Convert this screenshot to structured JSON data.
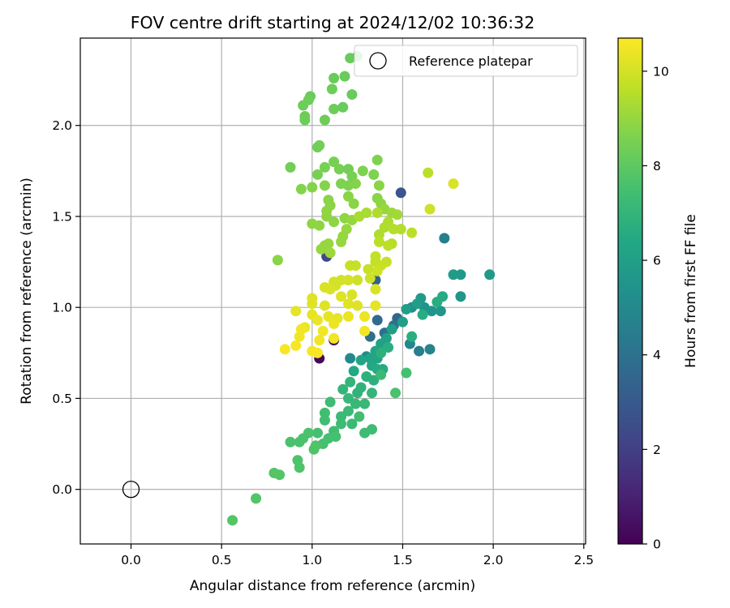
{
  "chart_data": {
    "type": "scatter",
    "title": "FOV centre drift starting at 2024/12/02 10:36:32",
    "xlabel": "Angular distance from reference (arcmin)",
    "ylabel": "Rotation from reference (arcmin)",
    "xlim": [
      -0.28,
      2.51
    ],
    "ylim": [
      -0.3,
      2.48
    ],
    "xticks": [
      0.0,
      0.5,
      1.0,
      1.5,
      2.0,
      2.5
    ],
    "yticks": [
      0.0,
      0.5,
      1.0,
      1.5,
      2.0
    ],
    "xtick_labels": [
      "0.0",
      "0.5",
      "1.0",
      "1.5",
      "2.0",
      "2.5"
    ],
    "ytick_labels": [
      "0.0",
      "0.5",
      "1.0",
      "1.5",
      "2.0"
    ],
    "grid": true,
    "legend": {
      "placement": "top-right",
      "entries": [
        "Reference platepar"
      ]
    },
    "reference_point": {
      "name": "Reference platepar",
      "x": 0.0,
      "y": 0.0
    },
    "colorbar": {
      "label": "Hours from first FF file",
      "colormap": "viridis",
      "range": [
        0,
        10.7
      ],
      "ticks": [
        0,
        2,
        4,
        6,
        8,
        10
      ],
      "tick_labels": [
        "0",
        "2",
        "4",
        "6",
        "8",
        "10"
      ]
    },
    "points": [
      {
        "x": 1.04,
        "y": 0.72,
        "c": 0.2
      },
      {
        "x": 1.12,
        "y": 0.82,
        "c": 0.4
      },
      {
        "x": 1.08,
        "y": 1.28,
        "c": 2.2
      },
      {
        "x": 1.49,
        "y": 1.63,
        "c": 2.8
      },
      {
        "x": 1.35,
        "y": 1.15,
        "c": 3.2
      },
      {
        "x": 1.47,
        "y": 0.94,
        "c": 3.5
      },
      {
        "x": 1.36,
        "y": 0.93,
        "c": 3.7
      },
      {
        "x": 1.32,
        "y": 0.84,
        "c": 3.9
      },
      {
        "x": 1.4,
        "y": 0.86,
        "c": 4.0
      },
      {
        "x": 1.45,
        "y": 0.9,
        "c": 4.1
      },
      {
        "x": 1.73,
        "y": 1.38,
        "c": 4.6
      },
      {
        "x": 1.59,
        "y": 0.76,
        "c": 4.5
      },
      {
        "x": 1.65,
        "y": 0.77,
        "c": 4.8
      },
      {
        "x": 1.54,
        "y": 0.8,
        "c": 4.9
      },
      {
        "x": 1.21,
        "y": 0.72,
        "c": 5.0
      },
      {
        "x": 1.3,
        "y": 0.73,
        "c": 5.1
      },
      {
        "x": 1.55,
        "y": 1.0,
        "c": 5.3
      },
      {
        "x": 1.62,
        "y": 1.0,
        "c": 5.4
      },
      {
        "x": 1.66,
        "y": 0.98,
        "c": 5.5
      },
      {
        "x": 1.71,
        "y": 0.98,
        "c": 5.6
      },
      {
        "x": 1.82,
        "y": 1.06,
        "c": 5.6
      },
      {
        "x": 1.98,
        "y": 1.18,
        "c": 5.7
      },
      {
        "x": 1.82,
        "y": 1.18,
        "c": 5.7
      },
      {
        "x": 1.78,
        "y": 1.18,
        "c": 5.8
      },
      {
        "x": 1.6,
        "y": 1.05,
        "c": 5.8
      },
      {
        "x": 1.58,
        "y": 1.02,
        "c": 5.9
      },
      {
        "x": 1.52,
        "y": 0.99,
        "c": 5.9
      },
      {
        "x": 1.5,
        "y": 0.92,
        "c": 6.0
      },
      {
        "x": 1.44,
        "y": 0.88,
        "c": 6.0
      },
      {
        "x": 1.41,
        "y": 0.83,
        "c": 6.1
      },
      {
        "x": 1.38,
        "y": 0.8,
        "c": 6.1
      },
      {
        "x": 1.35,
        "y": 0.76,
        "c": 6.2
      },
      {
        "x": 1.32,
        "y": 0.72,
        "c": 6.2
      },
      {
        "x": 1.36,
        "y": 0.72,
        "c": 6.3
      },
      {
        "x": 1.27,
        "y": 0.71,
        "c": 6.3
      },
      {
        "x": 1.23,
        "y": 0.65,
        "c": 6.4
      },
      {
        "x": 1.33,
        "y": 0.68,
        "c": 6.4
      },
      {
        "x": 1.36,
        "y": 0.66,
        "c": 6.5
      },
      {
        "x": 1.39,
        "y": 0.66,
        "c": 6.5
      },
      {
        "x": 1.72,
        "y": 1.06,
        "c": 6.5
      },
      {
        "x": 1.69,
        "y": 1.03,
        "c": 6.6
      },
      {
        "x": 1.61,
        "y": 0.96,
        "c": 6.6
      },
      {
        "x": 1.55,
        "y": 0.84,
        "c": 6.7
      },
      {
        "x": 1.42,
        "y": 0.78,
        "c": 6.7
      },
      {
        "x": 1.38,
        "y": 0.75,
        "c": 6.8
      },
      {
        "x": 1.3,
        "y": 0.62,
        "c": 6.8
      },
      {
        "x": 1.34,
        "y": 0.6,
        "c": 6.8
      },
      {
        "x": 1.27,
        "y": 0.56,
        "c": 6.9
      },
      {
        "x": 1.25,
        "y": 0.53,
        "c": 6.9
      },
      {
        "x": 1.33,
        "y": 0.53,
        "c": 7.0
      },
      {
        "x": 1.21,
        "y": 0.59,
        "c": 7.0
      },
      {
        "x": 1.17,
        "y": 0.55,
        "c": 7.0
      },
      {
        "x": 1.2,
        "y": 0.5,
        "c": 7.1
      },
      {
        "x": 1.24,
        "y": 0.47,
        "c": 7.1
      },
      {
        "x": 1.29,
        "y": 0.47,
        "c": 7.1
      },
      {
        "x": 1.2,
        "y": 0.43,
        "c": 7.2
      },
      {
        "x": 1.16,
        "y": 0.4,
        "c": 7.2
      },
      {
        "x": 1.22,
        "y": 0.36,
        "c": 7.2
      },
      {
        "x": 1.16,
        "y": 0.36,
        "c": 7.3
      },
      {
        "x": 1.29,
        "y": 0.31,
        "c": 7.3
      },
      {
        "x": 1.33,
        "y": 0.33,
        "c": 7.3
      },
      {
        "x": 1.1,
        "y": 0.48,
        "c": 7.3
      },
      {
        "x": 1.07,
        "y": 0.42,
        "c": 7.4
      },
      {
        "x": 1.07,
        "y": 0.38,
        "c": 7.4
      },
      {
        "x": 1.12,
        "y": 0.32,
        "c": 7.4
      },
      {
        "x": 1.13,
        "y": 0.29,
        "c": 7.5
      },
      {
        "x": 1.09,
        "y": 0.28,
        "c": 7.5
      },
      {
        "x": 1.06,
        "y": 0.25,
        "c": 7.5
      },
      {
        "x": 1.03,
        "y": 0.31,
        "c": 7.5
      },
      {
        "x": 0.98,
        "y": 0.31,
        "c": 7.6
      },
      {
        "x": 0.95,
        "y": 0.28,
        "c": 7.6
      },
      {
        "x": 0.93,
        "y": 0.26,
        "c": 7.6
      },
      {
        "x": 0.88,
        "y": 0.26,
        "c": 7.6
      },
      {
        "x": 1.01,
        "y": 0.22,
        "c": 7.7
      },
      {
        "x": 1.02,
        "y": 0.24,
        "c": 7.7
      },
      {
        "x": 0.92,
        "y": 0.16,
        "c": 7.7
      },
      {
        "x": 0.93,
        "y": 0.12,
        "c": 7.7
      },
      {
        "x": 0.79,
        "y": 0.09,
        "c": 7.8
      },
      {
        "x": 0.82,
        "y": 0.08,
        "c": 7.8
      },
      {
        "x": 0.69,
        "y": -0.05,
        "c": 7.8
      },
      {
        "x": 0.56,
        "y": -0.17,
        "c": 7.8
      },
      {
        "x": 1.46,
        "y": 0.53,
        "c": 7.6
      },
      {
        "x": 1.52,
        "y": 0.64,
        "c": 7.5
      },
      {
        "x": 1.38,
        "y": 0.63,
        "c": 7.2
      },
      {
        "x": 1.26,
        "y": 0.4,
        "c": 7.4
      },
      {
        "x": 1.21,
        "y": 2.37,
        "c": 8.2
      },
      {
        "x": 1.25,
        "y": 2.38,
        "c": 8.1
      },
      {
        "x": 1.12,
        "y": 2.26,
        "c": 8.2
      },
      {
        "x": 1.18,
        "y": 2.27,
        "c": 8.2
      },
      {
        "x": 1.11,
        "y": 2.2,
        "c": 8.3
      },
      {
        "x": 1.22,
        "y": 2.17,
        "c": 8.2
      },
      {
        "x": 0.99,
        "y": 2.16,
        "c": 8.2
      },
      {
        "x": 0.98,
        "y": 2.14,
        "c": 8.3
      },
      {
        "x": 0.95,
        "y": 2.11,
        "c": 8.3
      },
      {
        "x": 1.12,
        "y": 2.09,
        "c": 8.3
      },
      {
        "x": 1.17,
        "y": 2.1,
        "c": 8.2
      },
      {
        "x": 0.96,
        "y": 2.05,
        "c": 8.3
      },
      {
        "x": 0.96,
        "y": 2.03,
        "c": 8.3
      },
      {
        "x": 1.07,
        "y": 2.03,
        "c": 8.3
      },
      {
        "x": 1.03,
        "y": 1.88,
        "c": 8.4
      },
      {
        "x": 1.04,
        "y": 1.89,
        "c": 8.4
      },
      {
        "x": 0.88,
        "y": 1.77,
        "c": 8.4
      },
      {
        "x": 1.12,
        "y": 1.8,
        "c": 8.5
      },
      {
        "x": 1.07,
        "y": 1.77,
        "c": 8.5
      },
      {
        "x": 1.15,
        "y": 1.76,
        "c": 8.5
      },
      {
        "x": 1.2,
        "y": 1.76,
        "c": 8.4
      },
      {
        "x": 1.03,
        "y": 1.73,
        "c": 8.5
      },
      {
        "x": 1.22,
        "y": 1.72,
        "c": 8.5
      },
      {
        "x": 1.28,
        "y": 1.75,
        "c": 8.6
      },
      {
        "x": 1.36,
        "y": 1.81,
        "c": 8.6
      },
      {
        "x": 1.34,
        "y": 1.73,
        "c": 8.6
      },
      {
        "x": 1.16,
        "y": 1.68,
        "c": 8.6
      },
      {
        "x": 1.2,
        "y": 1.67,
        "c": 8.6
      },
      {
        "x": 1.24,
        "y": 1.68,
        "c": 8.7
      },
      {
        "x": 1.07,
        "y": 1.67,
        "c": 8.7
      },
      {
        "x": 1.0,
        "y": 1.66,
        "c": 8.7
      },
      {
        "x": 0.94,
        "y": 1.65,
        "c": 8.7
      },
      {
        "x": 1.37,
        "y": 1.67,
        "c": 8.8
      },
      {
        "x": 1.36,
        "y": 1.6,
        "c": 8.8
      },
      {
        "x": 1.2,
        "y": 1.61,
        "c": 8.8
      },
      {
        "x": 1.09,
        "y": 1.59,
        "c": 8.8
      },
      {
        "x": 1.1,
        "y": 1.56,
        "c": 8.8
      },
      {
        "x": 1.08,
        "y": 1.53,
        "c": 8.9
      },
      {
        "x": 1.23,
        "y": 1.57,
        "c": 8.8
      },
      {
        "x": 1.38,
        "y": 1.57,
        "c": 8.9
      },
      {
        "x": 1.4,
        "y": 1.54,
        "c": 9.0
      },
      {
        "x": 1.44,
        "y": 1.52,
        "c": 9.1
      },
      {
        "x": 1.47,
        "y": 1.51,
        "c": 9.2
      },
      {
        "x": 1.08,
        "y": 1.5,
        "c": 8.9
      },
      {
        "x": 1.12,
        "y": 1.47,
        "c": 8.9
      },
      {
        "x": 1.18,
        "y": 1.49,
        "c": 8.9
      },
      {
        "x": 1.22,
        "y": 1.48,
        "c": 9.0
      },
      {
        "x": 1.0,
        "y": 1.46,
        "c": 8.9
      },
      {
        "x": 1.04,
        "y": 1.45,
        "c": 8.9
      },
      {
        "x": 1.19,
        "y": 1.43,
        "c": 9.0
      },
      {
        "x": 1.17,
        "y": 1.39,
        "c": 9.0
      },
      {
        "x": 1.16,
        "y": 1.36,
        "c": 9.0
      },
      {
        "x": 1.07,
        "y": 1.34,
        "c": 9.0
      },
      {
        "x": 1.09,
        "y": 1.35,
        "c": 9.0
      },
      {
        "x": 1.05,
        "y": 1.32,
        "c": 9.0
      },
      {
        "x": 1.1,
        "y": 1.3,
        "c": 9.1
      },
      {
        "x": 0.81,
        "y": 1.26,
        "c": 8.8
      },
      {
        "x": 1.26,
        "y": 1.5,
        "c": 9.3
      },
      {
        "x": 1.3,
        "y": 1.52,
        "c": 9.3
      },
      {
        "x": 1.36,
        "y": 1.52,
        "c": 9.4
      },
      {
        "x": 1.37,
        "y": 1.4,
        "c": 9.4
      },
      {
        "x": 1.4,
        "y": 1.44,
        "c": 9.4
      },
      {
        "x": 1.42,
        "y": 1.47,
        "c": 9.4
      },
      {
        "x": 1.45,
        "y": 1.43,
        "c": 9.5
      },
      {
        "x": 1.49,
        "y": 1.43,
        "c": 9.5
      },
      {
        "x": 1.44,
        "y": 1.35,
        "c": 9.5
      },
      {
        "x": 1.42,
        "y": 1.34,
        "c": 9.6
      },
      {
        "x": 1.37,
        "y": 1.36,
        "c": 9.6
      },
      {
        "x": 1.55,
        "y": 1.41,
        "c": 9.6
      },
      {
        "x": 1.64,
        "y": 1.74,
        "c": 9.6
      },
      {
        "x": 1.65,
        "y": 1.54,
        "c": 9.9
      },
      {
        "x": 1.78,
        "y": 1.68,
        "c": 10.1
      },
      {
        "x": 1.35,
        "y": 1.28,
        "c": 9.7
      },
      {
        "x": 1.35,
        "y": 1.25,
        "c": 9.7
      },
      {
        "x": 1.41,
        "y": 1.25,
        "c": 9.8
      },
      {
        "x": 1.38,
        "y": 1.23,
        "c": 9.8
      },
      {
        "x": 1.31,
        "y": 1.21,
        "c": 9.8
      },
      {
        "x": 1.24,
        "y": 1.23,
        "c": 9.8
      },
      {
        "x": 1.21,
        "y": 1.23,
        "c": 9.8
      },
      {
        "x": 1.36,
        "y": 1.2,
        "c": 9.9
      },
      {
        "x": 1.32,
        "y": 1.16,
        "c": 9.9
      },
      {
        "x": 1.25,
        "y": 1.15,
        "c": 9.9
      },
      {
        "x": 1.2,
        "y": 1.15,
        "c": 10.0
      },
      {
        "x": 1.16,
        "y": 1.15,
        "c": 10.0
      },
      {
        "x": 1.12,
        "y": 1.14,
        "c": 10.0
      },
      {
        "x": 1.13,
        "y": 1.12,
        "c": 10.0
      },
      {
        "x": 1.07,
        "y": 1.11,
        "c": 10.1
      },
      {
        "x": 1.1,
        "y": 1.1,
        "c": 10.1
      },
      {
        "x": 1.35,
        "y": 1.1,
        "c": 10.1
      },
      {
        "x": 1.22,
        "y": 1.07,
        "c": 10.1
      },
      {
        "x": 1.16,
        "y": 1.06,
        "c": 10.2
      },
      {
        "x": 1.0,
        "y": 1.05,
        "c": 10.2
      },
      {
        "x": 1.0,
        "y": 1.02,
        "c": 10.2
      },
      {
        "x": 1.07,
        "y": 1.01,
        "c": 10.2
      },
      {
        "x": 1.2,
        "y": 1.02,
        "c": 10.2
      },
      {
        "x": 1.25,
        "y": 1.01,
        "c": 10.2
      },
      {
        "x": 1.35,
        "y": 1.01,
        "c": 10.3
      },
      {
        "x": 0.91,
        "y": 0.98,
        "c": 10.3
      },
      {
        "x": 1.0,
        "y": 0.96,
        "c": 10.3
      },
      {
        "x": 1.09,
        "y": 0.95,
        "c": 10.3
      },
      {
        "x": 1.14,
        "y": 0.94,
        "c": 10.3
      },
      {
        "x": 1.2,
        "y": 0.95,
        "c": 10.4
      },
      {
        "x": 1.29,
        "y": 0.95,
        "c": 10.4
      },
      {
        "x": 1.03,
        "y": 0.93,
        "c": 10.4
      },
      {
        "x": 1.12,
        "y": 0.91,
        "c": 10.4
      },
      {
        "x": 0.96,
        "y": 0.89,
        "c": 10.4
      },
      {
        "x": 0.94,
        "y": 0.88,
        "c": 10.5
      },
      {
        "x": 1.06,
        "y": 0.87,
        "c": 10.5
      },
      {
        "x": 1.29,
        "y": 0.87,
        "c": 10.5
      },
      {
        "x": 0.93,
        "y": 0.84,
        "c": 10.5
      },
      {
        "x": 1.12,
        "y": 0.83,
        "c": 10.5
      },
      {
        "x": 1.04,
        "y": 0.82,
        "c": 10.5
      },
      {
        "x": 0.91,
        "y": 0.79,
        "c": 10.6
      },
      {
        "x": 0.85,
        "y": 0.77,
        "c": 10.6
      },
      {
        "x": 1.0,
        "y": 0.76,
        "c": 10.6
      },
      {
        "x": 1.03,
        "y": 0.75,
        "c": 10.6
      }
    ]
  }
}
